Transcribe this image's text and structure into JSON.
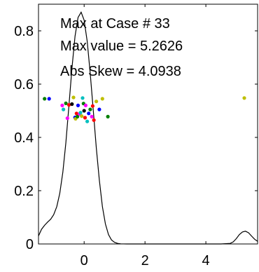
{
  "chart_data": {
    "type": "line",
    "title": "",
    "xlabel": "",
    "ylabel": "",
    "xlim": [
      -1.5,
      5.7
    ],
    "ylim": [
      0,
      0.9
    ],
    "xticks": [
      0,
      2,
      4
    ],
    "yticks": [
      0,
      0.2,
      0.4,
      0.6,
      0.8
    ],
    "xtick_labels": [
      "0",
      "2",
      "4"
    ],
    "ytick_labels": [
      "0",
      "0.2",
      "0.4",
      "0.6",
      "0.8"
    ],
    "grid": false,
    "annotations": [
      "Max at Case # 33",
      "Max value = 5.2626",
      "Abs Skew = 4.0938"
    ],
    "series": [
      {
        "kind": "density-line",
        "color": "#000000",
        "x": [
          -1.5,
          -1.4,
          -1.3,
          -1.2,
          -1.1,
          -1.0,
          -0.9,
          -0.8,
          -0.7,
          -0.6,
          -0.5,
          -0.4,
          -0.3,
          -0.2,
          -0.1,
          0.0,
          0.1,
          0.2,
          0.3,
          0.4,
          0.5,
          0.6,
          0.7,
          0.8,
          0.9,
          1.0,
          1.1,
          1.2,
          1.4,
          1.6,
          1.8,
          2.0,
          2.5,
          3.0,
          3.5,
          4.0,
          4.5,
          4.8,
          4.9,
          5.0,
          5.1,
          5.2,
          5.3,
          5.4,
          5.5,
          5.6,
          5.7
        ],
        "y": [
          0.03,
          0.055,
          0.07,
          0.082,
          0.093,
          0.11,
          0.14,
          0.19,
          0.27,
          0.38,
          0.52,
          0.66,
          0.78,
          0.85,
          0.87,
          0.84,
          0.76,
          0.64,
          0.5,
          0.36,
          0.24,
          0.14,
          0.075,
          0.035,
          0.015,
          0.006,
          0.002,
          0.0005,
          0,
          0,
          0,
          0,
          0,
          0,
          0,
          0,
          0,
          0.002,
          0.008,
          0.02,
          0.035,
          0.045,
          0.048,
          0.042,
          0.03,
          0.018,
          0.01
        ]
      },
      {
        "kind": "scatter",
        "points": [
          {
            "x": -1.3,
            "y": 0.545,
            "color": "#007f00"
          },
          {
            "x": -1.15,
            "y": 0.545,
            "color": "#0000ff"
          },
          {
            "x": -0.72,
            "y": 0.52,
            "color": "#ff00ff"
          },
          {
            "x": -0.68,
            "y": 0.505,
            "color": "#00bfbf"
          },
          {
            "x": -0.6,
            "y": 0.528,
            "color": "#007f00"
          },
          {
            "x": -0.55,
            "y": 0.472,
            "color": "#ff00ff"
          },
          {
            "x": -0.5,
            "y": 0.522,
            "color": "#ff0000"
          },
          {
            "x": -0.4,
            "y": 0.525,
            "color": "#000000"
          },
          {
            "x": -0.35,
            "y": 0.55,
            "color": "#bfbf00"
          },
          {
            "x": -0.3,
            "y": 0.475,
            "color": "#0000ff"
          },
          {
            "x": -0.28,
            "y": 0.47,
            "color": "#bfbf00"
          },
          {
            "x": -0.25,
            "y": 0.49,
            "color": "#ff0000"
          },
          {
            "x": -0.22,
            "y": 0.478,
            "color": "#007f00"
          },
          {
            "x": -0.2,
            "y": 0.52,
            "color": "#0000ff"
          },
          {
            "x": -0.15,
            "y": 0.488,
            "color": "#ff00ff"
          },
          {
            "x": -0.12,
            "y": 0.493,
            "color": "#00bfbf"
          },
          {
            "x": -0.08,
            "y": 0.48,
            "color": "#bfbf00"
          },
          {
            "x": -0.05,
            "y": 0.548,
            "color": "#00bfbf"
          },
          {
            "x": -0.02,
            "y": 0.527,
            "color": "#007f00"
          },
          {
            "x": 0.0,
            "y": 0.5,
            "color": "#000000"
          },
          {
            "x": 0.03,
            "y": 0.474,
            "color": "#ff0000"
          },
          {
            "x": 0.05,
            "y": 0.52,
            "color": "#ff00ff"
          },
          {
            "x": 0.1,
            "y": 0.46,
            "color": "#00bfbf"
          },
          {
            "x": 0.15,
            "y": 0.49,
            "color": "#0000ff"
          },
          {
            "x": 0.2,
            "y": 0.505,
            "color": "#007f00"
          },
          {
            "x": 0.25,
            "y": 0.478,
            "color": "#ff00ff"
          },
          {
            "x": 0.28,
            "y": 0.518,
            "color": "#ff0000"
          },
          {
            "x": 0.32,
            "y": 0.465,
            "color": "#ff0000"
          },
          {
            "x": 0.4,
            "y": 0.535,
            "color": "#bfbf00"
          },
          {
            "x": 0.5,
            "y": 0.505,
            "color": "#0000ff"
          },
          {
            "x": 0.6,
            "y": 0.545,
            "color": "#bfbf00"
          },
          {
            "x": 0.78,
            "y": 0.478,
            "color": "#007f00"
          },
          {
            "x": 5.2626,
            "y": 0.548,
            "color": "#bfbf00"
          }
        ]
      }
    ]
  }
}
